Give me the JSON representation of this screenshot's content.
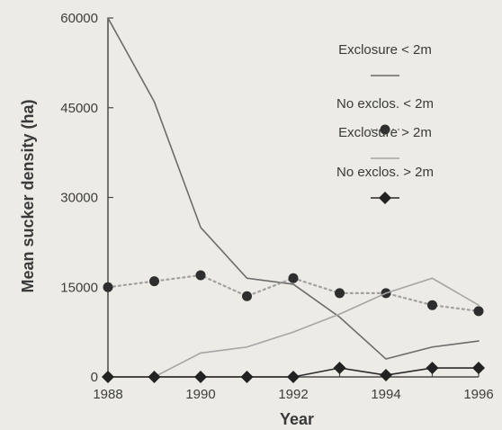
{
  "chart_data": {
    "type": "line",
    "title": "",
    "xlabel": "Year",
    "ylabel": "Mean sucker density (ha)",
    "xlim": [
      1988,
      1996
    ],
    "ylim": [
      0,
      60000
    ],
    "x_ticks": [
      "1988",
      "1990",
      "1992",
      "1994",
      "1996"
    ],
    "y_ticks": [
      "0",
      "15000",
      "30000",
      "45000",
      "60000"
    ],
    "grid": false,
    "legend_position": "top-right",
    "x": [
      1988,
      1989,
      1990,
      1991,
      1992,
      1993,
      1994,
      1995,
      1996
    ],
    "series": [
      {
        "name": "Exclosure < 2m",
        "style": "solid",
        "marker": "none",
        "color": "#6b6b6b",
        "values": [
          60000,
          46000,
          25000,
          16500,
          15500,
          10000,
          3000,
          5000,
          6000
        ]
      },
      {
        "name": "No exclos. < 2m",
        "style": "dotted",
        "marker": "circle",
        "color": "#a0a0a0",
        "values": [
          15000,
          16000,
          17000,
          13500,
          16500,
          14000,
          14000,
          12000,
          11000
        ]
      },
      {
        "name": "Exclosure > 2m",
        "style": "solid",
        "marker": "none",
        "color": "#a5a5a5",
        "values": [
          0,
          0,
          4000,
          5000,
          7500,
          10500,
          14000,
          16500,
          12000
        ]
      },
      {
        "name": "No exclos. > 2m",
        "style": "solid",
        "marker": "diamond",
        "color": "#2a2a2a",
        "values": [
          0,
          0,
          0,
          0,
          0,
          1500,
          300,
          1500,
          1500
        ]
      }
    ]
  }
}
